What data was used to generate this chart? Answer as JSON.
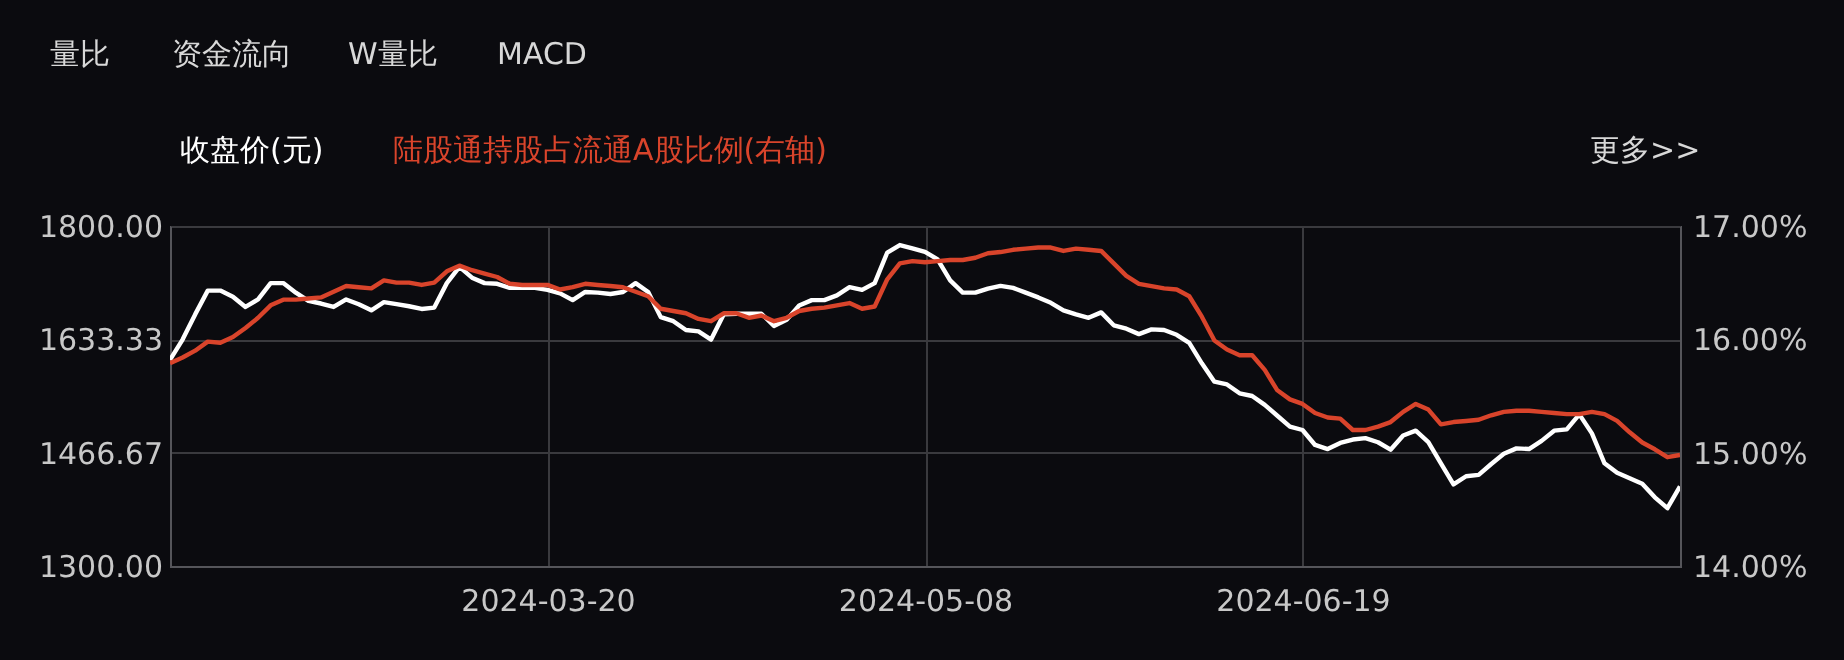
{
  "chart_data": {
    "type": "line",
    "annotations": [
      "量比",
      "资金流向",
      "W量比",
      "MACD",
      "更多>>"
    ],
    "categories": [
      null,
      null,
      null,
      null,
      null,
      null,
      null,
      null,
      null,
      null,
      null,
      null,
      null,
      null,
      null,
      null,
      null,
      null,
      null,
      null,
      null,
      null,
      null,
      null,
      null,
      null,
      null,
      null,
      null,
      null,
      "2024-03-20",
      null,
      null,
      null,
      null,
      null,
      null,
      null,
      null,
      null,
      null,
      null,
      null,
      null,
      null,
      null,
      null,
      null,
      null,
      null,
      null,
      null,
      null,
      null,
      null,
      null,
      null,
      null,
      null,
      null,
      "2024-05-08",
      null,
      null,
      null,
      null,
      null,
      null,
      null,
      null,
      null,
      null,
      null,
      null,
      null,
      null,
      null,
      null,
      null,
      null,
      null,
      null,
      null,
      null,
      null,
      null,
      null,
      null,
      null,
      null,
      null,
      "2024-06-19",
      null,
      null,
      null,
      null,
      null,
      null,
      null,
      null,
      null,
      null,
      null,
      null,
      null,
      null,
      null,
      null,
      null,
      null,
      null,
      null,
      null,
      null,
      null,
      null,
      null,
      null,
      null,
      null,
      null,
      null
    ],
    "ylim": [
      1300,
      1800
    ],
    "yticks": [
      {
        "value": 1300,
        "label": "1300.00"
      },
      {
        "value": 1466.67,
        "label": "1466.67"
      },
      {
        "value": 1633.33,
        "label": "1633.33"
      },
      {
        "value": 1800,
        "label": "1800.00"
      }
    ],
    "y2lim": [
      14,
      17
    ],
    "y2ticks": [
      {
        "value": 14,
        "label": "14.00%"
      },
      {
        "value": 15,
        "label": "15.00%"
      },
      {
        "value": 16,
        "label": "16.00%"
      },
      {
        "value": 17,
        "label": "17.00%"
      }
    ],
    "grid": true,
    "legend": "top",
    "line_style": "solid",
    "marker": "none",
    "series": [
      {
        "name": "收盘价(元)",
        "color": "#ffffff",
        "axis": "y",
        "values": [
          1603,
          1633,
          1670,
          1705,
          1705,
          1696,
          1681,
          1692,
          1716,
          1716,
          1702,
          1690,
          1686,
          1681,
          1692,
          1685,
          1676,
          1688,
          1685,
          1682,
          1678,
          1680,
          1716,
          1740,
          1724,
          1716,
          1715,
          1709,
          1709,
          1709,
          1706,
          1701,
          1691,
          1703,
          1702,
          1700,
          1703,
          1716,
          1703,
          1666,
          1660,
          1647,
          1645,
          1633,
          1670,
          1671,
          1671,
          1671,
          1653,
          1662,
          1683,
          1691,
          1691,
          1698,
          1710,
          1706,
          1716,
          1761,
          1772,
          1767,
          1762,
          1751,
          1720,
          1702,
          1702,
          1708,
          1712,
          1709,
          1702,
          1695,
          1687,
          1676,
          1670,
          1665,
          1673,
          1654,
          1649,
          1641,
          1648,
          1647,
          1640,
          1628,
          1598,
          1571,
          1567,
          1554,
          1550,
          1537,
          1521,
          1505,
          1500,
          1478,
          1472,
          1481,
          1486,
          1488,
          1482,
          1471,
          1492,
          1499,
          1482,
          1451,
          1420,
          1432,
          1434,
          1450,
          1465,
          1473,
          1472,
          1484,
          1499,
          1501,
          1523,
          1495,
          1451,
          1437,
          1429,
          1421,
          1401,
          1385,
          1417
        ]
      },
      {
        "name": "陆股通持股占流通A股比例(右轴)",
        "color": "#d9442b",
        "axis": "y2",
        "values": [
          15.79,
          15.84,
          15.9,
          15.98,
          15.97,
          16.02,
          16.1,
          16.19,
          16.3,
          16.35,
          16.35,
          16.36,
          16.37,
          16.42,
          16.47,
          16.46,
          16.45,
          16.52,
          16.5,
          16.5,
          16.48,
          16.5,
          16.6,
          16.65,
          16.61,
          16.58,
          16.55,
          16.49,
          16.48,
          16.48,
          16.48,
          16.44,
          16.46,
          16.49,
          16.48,
          16.47,
          16.46,
          16.42,
          16.38,
          16.27,
          16.25,
          16.23,
          16.18,
          16.16,
          16.23,
          16.23,
          16.19,
          16.21,
          16.16,
          16.19,
          16.25,
          16.27,
          16.28,
          16.3,
          16.32,
          16.27,
          16.29,
          16.53,
          16.67,
          16.69,
          16.68,
          16.69,
          16.7,
          16.7,
          16.72,
          16.76,
          16.77,
          16.79,
          16.8,
          16.81,
          16.81,
          16.78,
          16.8,
          16.79,
          16.78,
          16.67,
          16.56,
          16.49,
          16.47,
          16.45,
          16.44,
          16.38,
          16.2,
          15.99,
          15.91,
          15.86,
          15.86,
          15.73,
          15.55,
          15.47,
          15.43,
          15.35,
          15.31,
          15.3,
          15.2,
          15.2,
          15.23,
          15.27,
          15.36,
          15.43,
          15.38,
          15.25,
          15.27,
          15.28,
          15.29,
          15.33,
          15.36,
          15.37,
          15.37,
          15.36,
          15.35,
          15.34,
          15.34,
          15.36,
          15.34,
          15.28,
          15.18,
          15.09,
          15.03,
          14.96,
          14.98
        ]
      }
    ]
  }
}
